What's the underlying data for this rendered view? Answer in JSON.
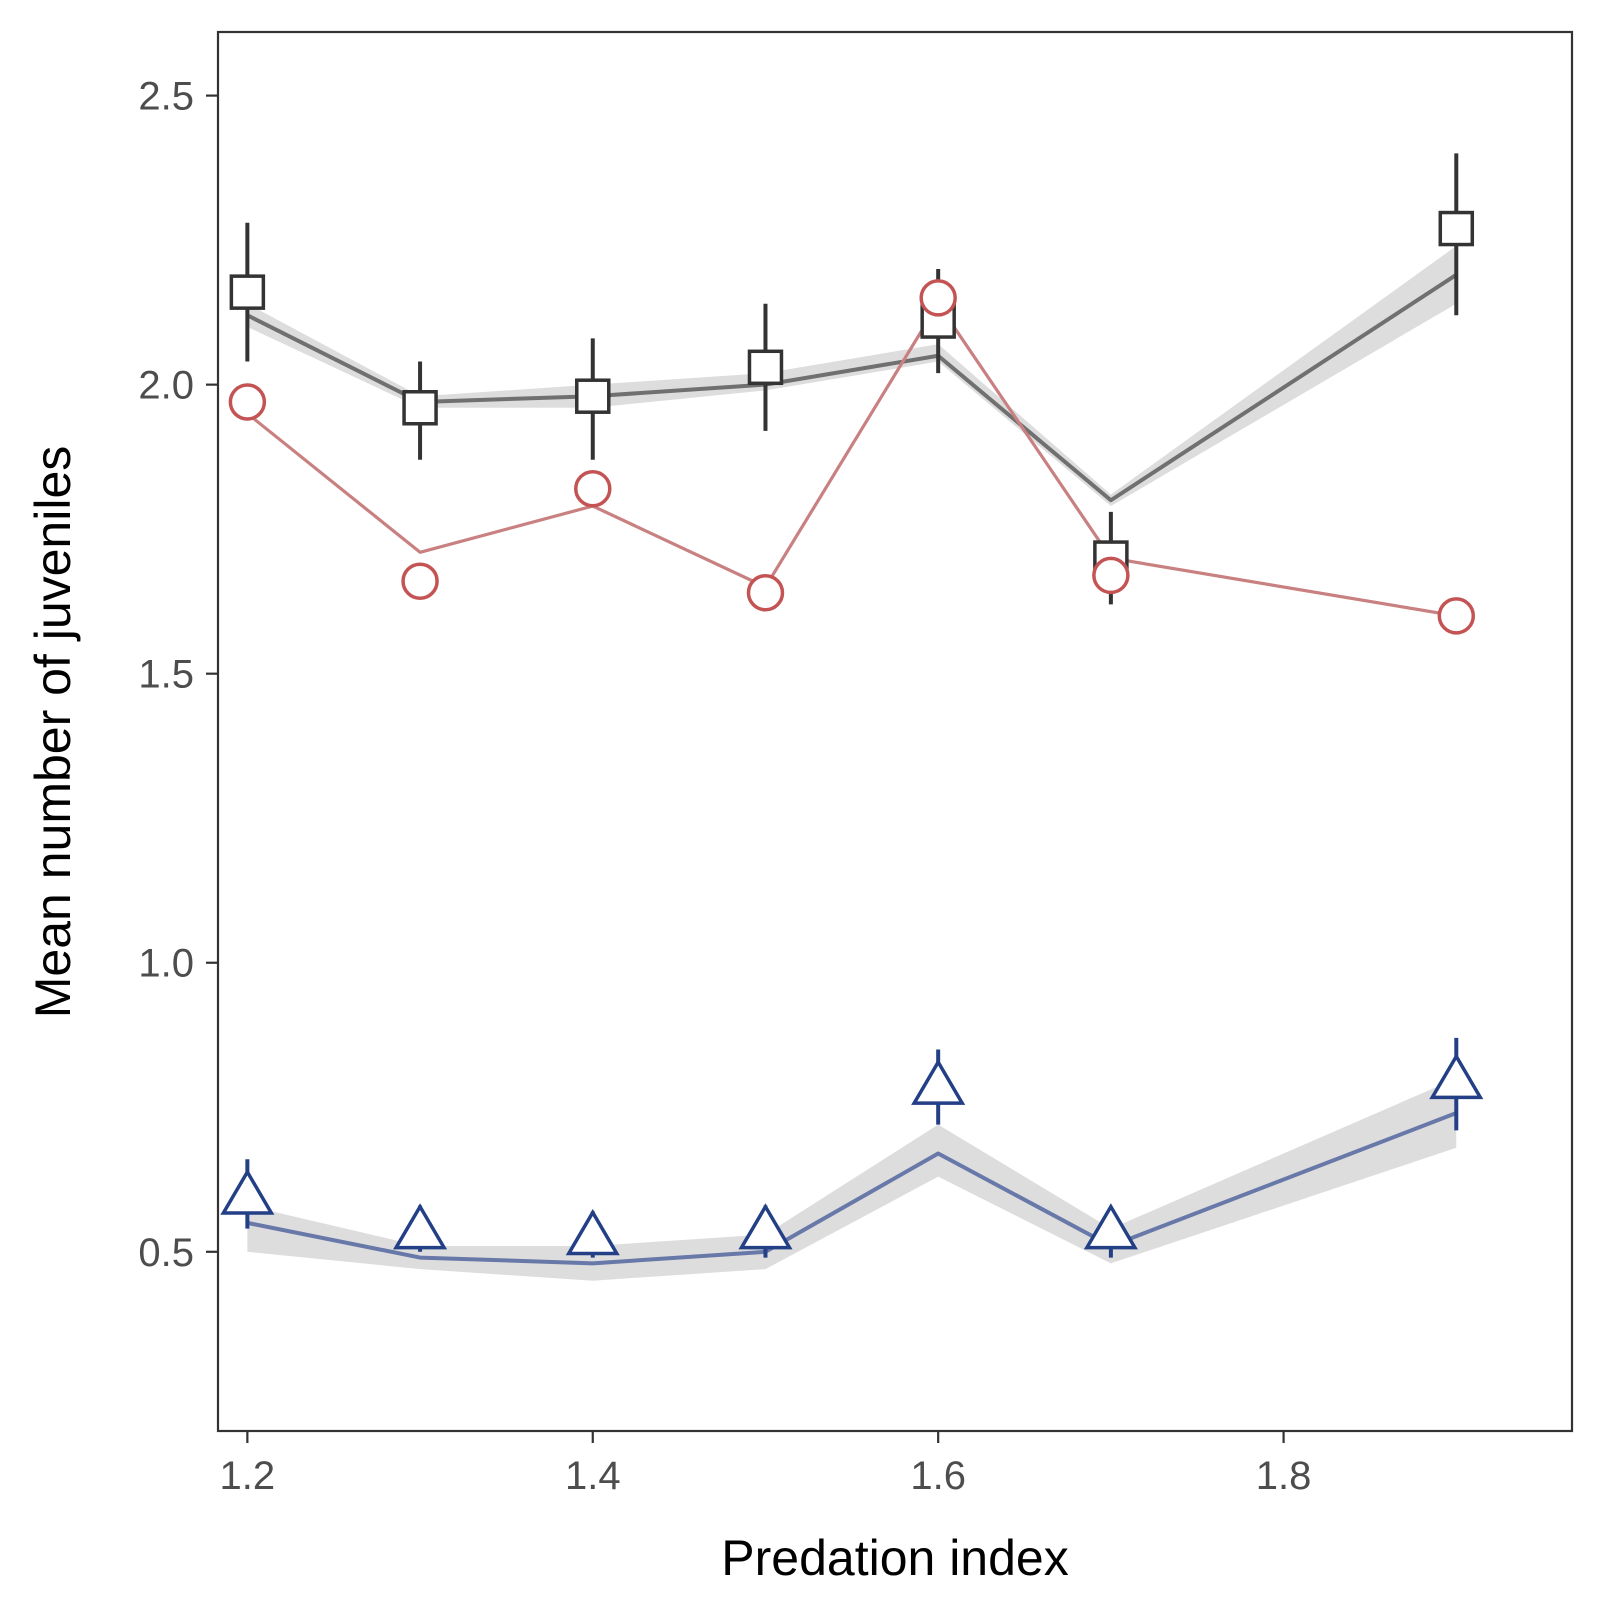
{
  "chart_data": {
    "type": "line",
    "title": "",
    "xlabel": "Predation index",
    "ylabel": "Mean number of juveniles",
    "xlim": [
      1.183,
      1.967
    ],
    "ylim": [
      0.19,
      2.61
    ],
    "x_ticks": [
      {
        "value": 1.2,
        "label": "1.2"
      },
      {
        "value": 1.4,
        "label": "1.4"
      },
      {
        "value": 1.6,
        "label": "1.6"
      },
      {
        "value": 1.8,
        "label": "1.8"
      }
    ],
    "y_ticks": [
      {
        "value": 0.5,
        "label": "0.5"
      },
      {
        "value": 1.0,
        "label": "1.0"
      },
      {
        "value": 1.5,
        "label": "1.5"
      },
      {
        "value": 2.0,
        "label": "2.0"
      },
      {
        "value": 2.5,
        "label": "2.5"
      }
    ],
    "grid": false,
    "legend": "none",
    "series": [
      {
        "marker": "square",
        "color": "#333333",
        "line_color": "#707070",
        "x": [
          1.2,
          1.3,
          1.4,
          1.5,
          1.6,
          1.7,
          1.9
        ],
        "points": [
          2.16,
          1.96,
          1.98,
          2.03,
          2.11,
          1.7,
          2.27
        ],
        "err_low": [
          2.04,
          1.87,
          1.87,
          1.92,
          2.02,
          1.62,
          2.12
        ],
        "err_high": [
          2.28,
          2.04,
          2.08,
          2.14,
          2.2,
          1.78,
          2.4
        ],
        "fit": [
          2.12,
          1.97,
          1.98,
          2.0,
          2.05,
          1.8,
          2.19
        ],
        "ci_low": [
          2.1,
          1.96,
          1.96,
          1.99,
          2.04,
          1.79,
          2.14
        ],
        "ci_high": [
          2.14,
          1.98,
          2.0,
          2.02,
          2.07,
          1.81,
          2.24
        ]
      },
      {
        "marker": "circle",
        "color": "#c45454",
        "line_color": "#c88080",
        "x": [
          1.2,
          1.3,
          1.4,
          1.5,
          1.6,
          1.7,
          1.9
        ],
        "points": [
          1.97,
          1.66,
          1.82,
          1.64,
          2.15,
          1.67,
          1.6
        ],
        "fit": [
          1.95,
          1.71,
          1.79,
          1.65,
          2.14,
          1.7,
          1.6
        ]
      },
      {
        "marker": "triangle",
        "color": "#233f86",
        "line_color": "#6878a8",
        "x": [
          1.2,
          1.3,
          1.4,
          1.5,
          1.6,
          1.7,
          1.9
        ],
        "points": [
          0.6,
          0.54,
          0.53,
          0.54,
          0.79,
          0.54,
          0.8
        ],
        "err_low": [
          0.54,
          0.5,
          0.49,
          0.49,
          0.72,
          0.49,
          0.71
        ],
        "err_high": [
          0.66,
          0.58,
          0.57,
          0.58,
          0.85,
          0.57,
          0.87
        ],
        "fit": [
          0.55,
          0.49,
          0.48,
          0.5,
          0.67,
          0.51,
          0.74
        ],
        "ci_low": [
          0.5,
          0.47,
          0.45,
          0.47,
          0.63,
          0.48,
          0.68
        ],
        "ci_high": [
          0.58,
          0.51,
          0.51,
          0.53,
          0.72,
          0.54,
          0.8
        ]
      }
    ]
  }
}
